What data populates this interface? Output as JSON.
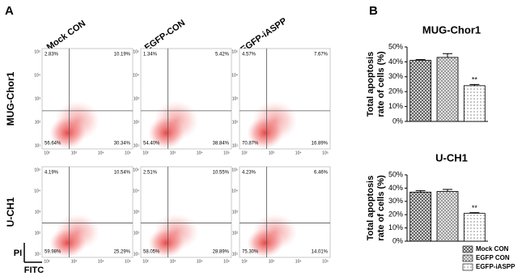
{
  "panel_a": {
    "label": "A",
    "columns": [
      "Mock CON",
      "EGFP-CON",
      "EGFP-iASPP"
    ],
    "rows": [
      {
        "label": "MUG-Chor1",
        "plots": [
          [
            "2.83%",
            "10.19%",
            "56.64%",
            "30.34%"
          ],
          [
            "1.34%",
            "5.42%",
            "54.40%",
            "38.84%"
          ],
          [
            "4.57%",
            "7.67%",
            "70.87%",
            "16.89%"
          ]
        ]
      },
      {
        "label": "U-CH1",
        "plots": [
          [
            "4.19%",
            "10.54%",
            "59.98%",
            "25.29%"
          ],
          [
            "2.51%",
            "10.55%",
            "58.05%",
            "28.89%"
          ],
          [
            "4.23%",
            "6.46%",
            "75.30%",
            "14.01%"
          ]
        ]
      }
    ],
    "x_axis_label": "FITC",
    "y_axis_label": "PI",
    "x_ticks": [
      "10²",
      "10³",
      "10⁴",
      "10⁵"
    ],
    "y_ticks": [
      "10⁵",
      "10⁴",
      "10³",
      "10²",
      "10¹"
    ]
  },
  "panel_b_label": "B",
  "chart_data": [
    {
      "type": "bar",
      "title": "MUG-Chor1",
      "y_label": [
        "Total apoptosis",
        "rate of cells (%)"
      ],
      "categories": [
        "Mock CON",
        "EGFP CON",
        "EGFP-iASPP"
      ],
      "values": [
        41,
        43,
        24
      ],
      "errors": [
        0.5,
        2.5,
        0.8
      ],
      "colors": [
        "#4d4d4d",
        "#8c8c8c",
        "#dcdcdc"
      ],
      "ylim": [
        0,
        50
      ],
      "yticks": [
        {
          "value": 0,
          "label": "0%"
        },
        {
          "value": 10,
          "label": "10%"
        },
        {
          "value": 20,
          "label": "20%"
        },
        {
          "value": 30,
          "label": "30%"
        },
        {
          "value": 40,
          "label": "40%"
        },
        {
          "value": 50,
          "label": "50%"
        }
      ],
      "annotations": [
        {
          "text": "**",
          "category": "EGFP-iASPP"
        }
      ]
    },
    {
      "type": "bar",
      "title": "U-CH1",
      "y_label": [
        "Total apoptosis",
        "rate of cells (%)"
      ],
      "categories": [
        "Mock CON",
        "EGFP CON",
        "EGFP-iASPP"
      ],
      "values": [
        37,
        37.5,
        21
      ],
      "errors": [
        1,
        1.5,
        0.5
      ],
      "colors": [
        "#4d4d4d",
        "#8c8c8c",
        "#dcdcdc"
      ],
      "ylim": [
        0,
        50
      ],
      "yticks": [
        {
          "value": 0,
          "label": "0%"
        },
        {
          "value": 10,
          "label": "10%"
        },
        {
          "value": 20,
          "label": "20%"
        },
        {
          "value": 30,
          "label": "30%"
        },
        {
          "value": 40,
          "label": "40%"
        },
        {
          "value": 50,
          "label": "50%"
        }
      ],
      "annotations": [
        {
          "text": "**",
          "category": "EGFP-iASPP"
        }
      ],
      "legend": "bottom-right"
    }
  ]
}
